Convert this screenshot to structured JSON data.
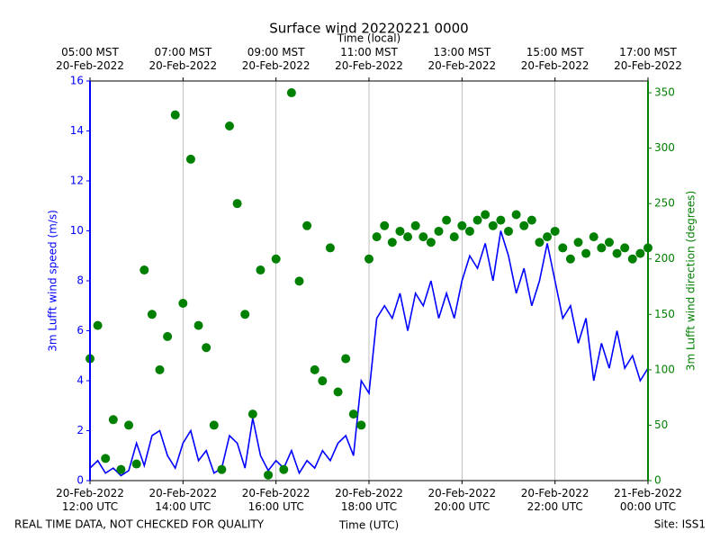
{
  "chart_data": {
    "type": "line",
    "title": "Surface wind 20220221 0000",
    "xlabel": "Time (UTC)",
    "x2label": "Time (local)",
    "ylabel": "3m Lufft wind speed (m/s)",
    "y2label": "3m Lufft wind direction (degrees)",
    "footer_left": "REAL TIME DATA, NOT CHECKED FOR QUALITY",
    "footer_right": "Site: ISS1",
    "grid": true,
    "x": [
      "2022-02-20T12:00",
      "2022-02-20T12:10",
      "2022-02-20T12:20",
      "2022-02-20T12:30",
      "2022-02-20T12:40",
      "2022-02-20T12:50",
      "2022-02-20T13:00",
      "2022-02-20T13:10",
      "2022-02-20T13:20",
      "2022-02-20T13:30",
      "2022-02-20T13:40",
      "2022-02-20T13:50",
      "2022-02-20T14:00",
      "2022-02-20T14:10",
      "2022-02-20T14:20",
      "2022-02-20T14:30",
      "2022-02-20T14:40",
      "2022-02-20T14:50",
      "2022-02-20T15:00",
      "2022-02-20T15:10",
      "2022-02-20T15:20",
      "2022-02-20T15:30",
      "2022-02-20T15:40",
      "2022-02-20T15:50",
      "2022-02-20T16:00",
      "2022-02-20T16:10",
      "2022-02-20T16:20",
      "2022-02-20T16:30",
      "2022-02-20T16:40",
      "2022-02-20T16:50",
      "2022-02-20T17:00",
      "2022-02-20T17:10",
      "2022-02-20T17:20",
      "2022-02-20T17:30",
      "2022-02-20T17:40",
      "2022-02-20T17:50",
      "2022-02-20T18:00",
      "2022-02-20T18:10",
      "2022-02-20T18:20",
      "2022-02-20T18:30",
      "2022-02-20T18:40",
      "2022-02-20T18:50",
      "2022-02-20T19:00",
      "2022-02-20T19:10",
      "2022-02-20T19:20",
      "2022-02-20T19:30",
      "2022-02-20T19:40",
      "2022-02-20T19:50",
      "2022-02-20T20:00",
      "2022-02-20T20:10",
      "2022-02-20T20:20",
      "2022-02-20T20:30",
      "2022-02-20T20:40",
      "2022-02-20T20:50",
      "2022-02-20T21:00",
      "2022-02-20T21:10",
      "2022-02-20T21:20",
      "2022-02-20T21:30",
      "2022-02-20T21:40",
      "2022-02-20T21:50",
      "2022-02-20T22:00",
      "2022-02-20T22:10",
      "2022-02-20T22:20",
      "2022-02-20T22:30",
      "2022-02-20T22:40",
      "2022-02-20T22:50",
      "2022-02-20T23:00",
      "2022-02-20T23:10",
      "2022-02-20T23:20",
      "2022-02-20T23:30",
      "2022-02-20T23:40",
      "2022-02-20T23:50",
      "2022-02-21T00:00"
    ],
    "series": [
      {
        "type": "line",
        "color": "#0000ff",
        "values": [
          0.5,
          0.8,
          0.3,
          0.5,
          0.2,
          0.4,
          1.5,
          0.6,
          1.8,
          2.0,
          1.0,
          0.5,
          1.5,
          2.0,
          0.8,
          1.2,
          0.3,
          0.5,
          1.8,
          1.5,
          0.5,
          2.5,
          1.0,
          0.4,
          0.8,
          0.5,
          1.2,
          0.3,
          0.8,
          0.5,
          1.2,
          0.8,
          1.5,
          1.8,
          1.0,
          4.0,
          3.5,
          6.5,
          7.0,
          6.5,
          7.5,
          6.0,
          7.5,
          7.0,
          8.0,
          6.5,
          7.5,
          6.5,
          8.0,
          9.0,
          8.5,
          9.5,
          8.0,
          10.0,
          9.0,
          7.5,
          8.5,
          7.0,
          8.0,
          9.5,
          8.0,
          6.5,
          7.0,
          5.5,
          6.5,
          4.0,
          5.5,
          4.5,
          6.0,
          4.5,
          5.0,
          4.0,
          4.5
        ]
      },
      {
        "type": "scatter",
        "axis": "y2",
        "color": "#008000",
        "values": [
          110,
          140,
          20,
          55,
          10,
          50,
          15,
          190,
          150,
          100,
          130,
          330,
          160,
          290,
          140,
          120,
          50,
          10,
          320,
          250,
          150,
          60,
          190,
          5,
          200,
          10,
          350,
          180,
          230,
          100,
          90,
          210,
          80,
          110,
          60,
          50,
          200,
          220,
          230,
          215,
          225,
          220,
          230,
          220,
          215,
          225,
          235,
          220,
          230,
          225,
          235,
          240,
          230,
          235,
          225,
          240,
          230,
          235,
          215,
          220,
          225,
          210,
          200,
          215,
          205,
          220,
          210,
          215,
          205,
          210,
          200,
          205,
          210
        ]
      }
    ],
    "xlim": [
      "2022-02-20T12:00",
      "2022-02-21T00:00"
    ],
    "xticks": [
      {
        "value": "2022-02-20T12:00",
        "label": "20-Feb-2022\n12:00 UTC"
      },
      {
        "value": "2022-02-20T14:00",
        "label": "20-Feb-2022\n14:00 UTC"
      },
      {
        "value": "2022-02-20T16:00",
        "label": "20-Feb-2022\n16:00 UTC"
      },
      {
        "value": "2022-02-20T18:00",
        "label": "20-Feb-2022\n18:00 UTC"
      },
      {
        "value": "2022-02-20T20:00",
        "label": "20-Feb-2022\n20:00 UTC"
      },
      {
        "value": "2022-02-20T22:00",
        "label": "20-Feb-2022\n22:00 UTC"
      },
      {
        "value": "2022-02-21T00:00",
        "label": "21-Feb-2022\n00:00 UTC"
      }
    ],
    "x2ticks": [
      {
        "value": "2022-02-20T12:00",
        "label": "05:00 MST\n20-Feb-2022"
      },
      {
        "value": "2022-02-20T14:00",
        "label": "07:00 MST\n20-Feb-2022"
      },
      {
        "value": "2022-02-20T16:00",
        "label": "09:00 MST\n20-Feb-2022"
      },
      {
        "value": "2022-02-20T18:00",
        "label": "11:00 MST\n20-Feb-2022"
      },
      {
        "value": "2022-02-20T20:00",
        "label": "13:00 MST\n20-Feb-2022"
      },
      {
        "value": "2022-02-20T22:00",
        "label": "15:00 MST\n20-Feb-2022"
      },
      {
        "value": "2022-02-21T00:00",
        "label": "17:00 MST\n20-Feb-2022"
      }
    ],
    "ylim": [
      0,
      16
    ],
    "yticks": [
      0,
      2,
      4,
      6,
      8,
      10,
      12,
      14,
      16
    ],
    "y2lim": [
      0,
      360.6
    ],
    "y2ticks": [
      0,
      50,
      100,
      150,
      200,
      250,
      300,
      350
    ]
  }
}
